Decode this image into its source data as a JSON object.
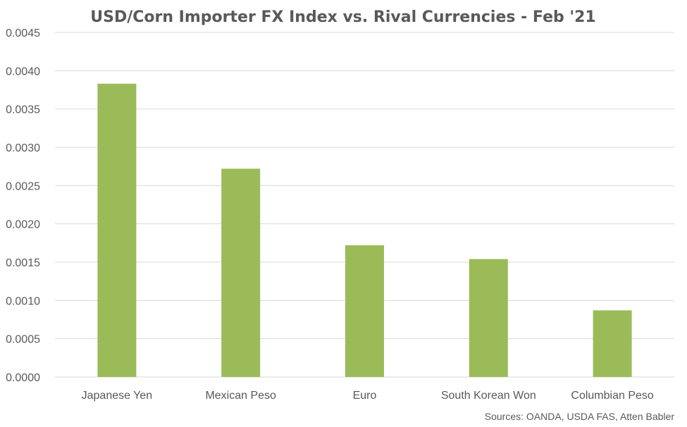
{
  "chart_data": {
    "type": "bar",
    "title": "USD/Corn Importer FX Index vs. Rival Currencies - Feb '21",
    "categories": [
      "Japanese Yen",
      "Mexican Peso",
      "Euro",
      "South Korean Won",
      "Columbian Peso"
    ],
    "values": [
      0.00383,
      0.00272,
      0.00172,
      0.00154,
      0.00087
    ],
    "ylim": [
      0,
      0.0045
    ],
    "yticks": [
      "0.0000",
      "0.0005",
      "0.0010",
      "0.0015",
      "0.0020",
      "0.0025",
      "0.0030",
      "0.0035",
      "0.0040",
      "0.0045"
    ],
    "grid": true,
    "bar_color": "#9bbb59",
    "source": "Sources: OANDA, USDA FAS, Atten Babler"
  }
}
